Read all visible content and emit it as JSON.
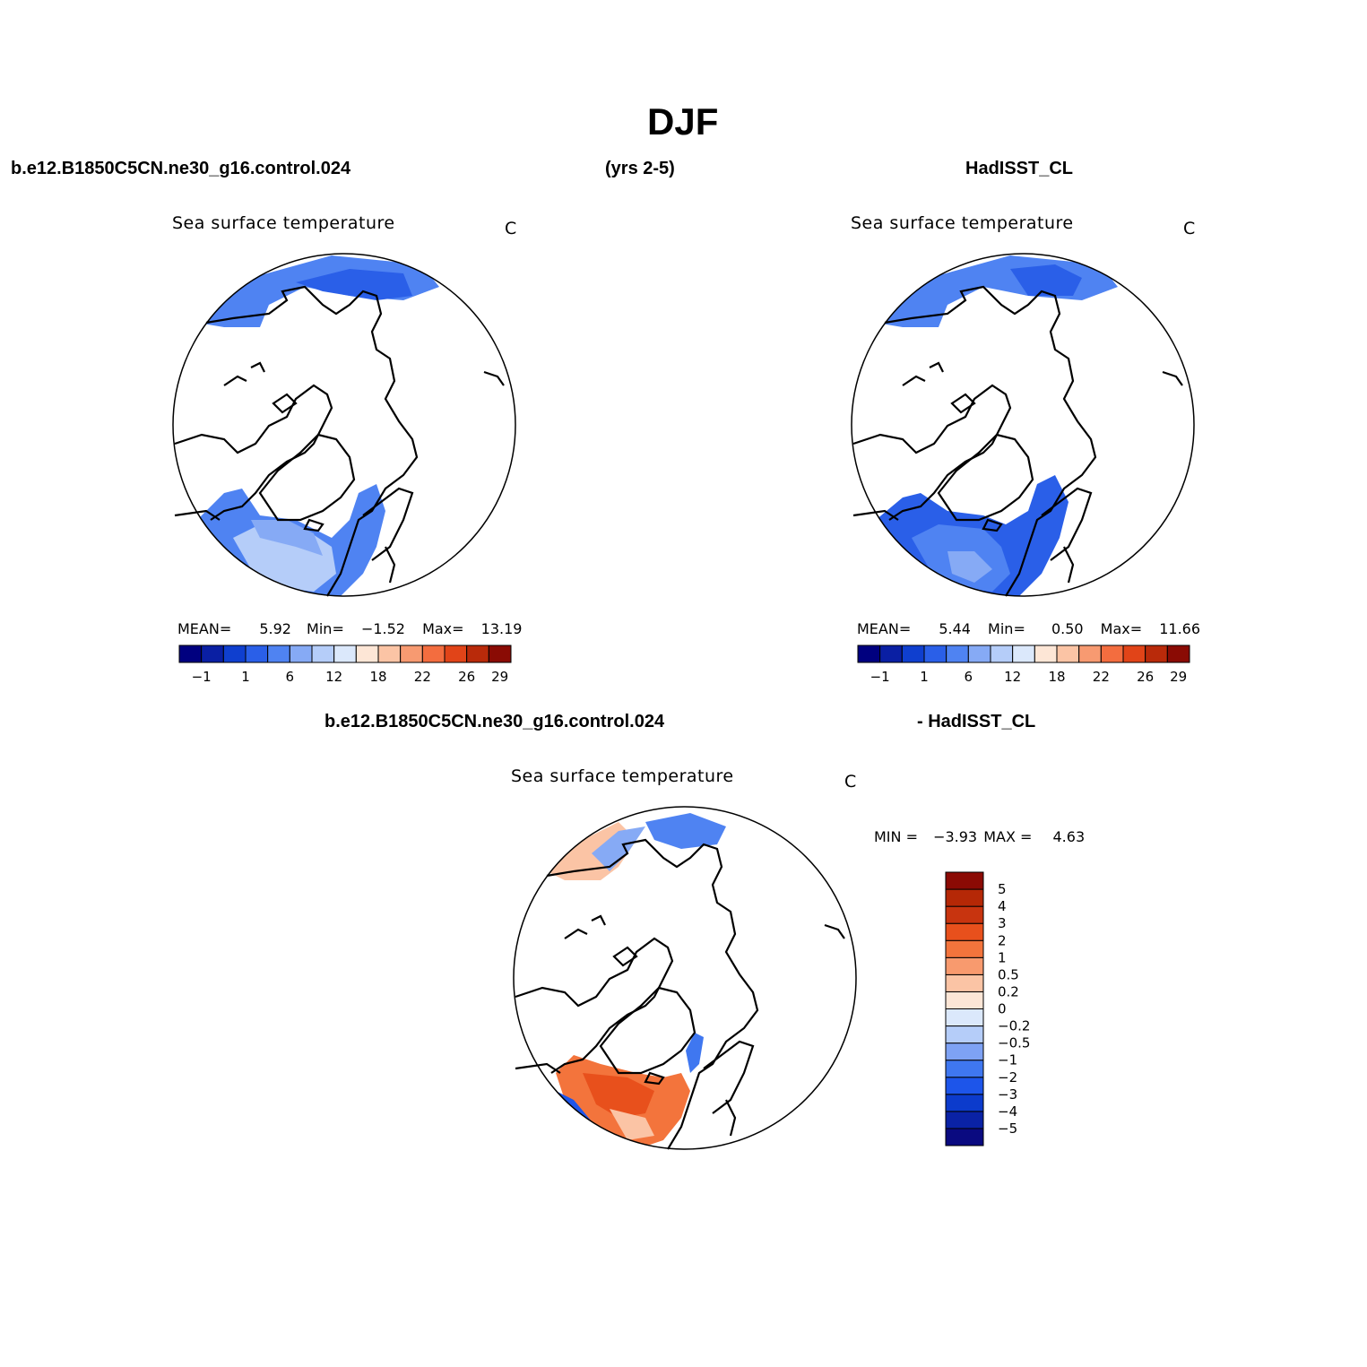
{
  "figure": {
    "title": "DJF",
    "header_left": "b.e12.B1850C5CN.ne30_g16.control.024",
    "header_center": "(yrs 2-5)",
    "header_right": "HadISST_CL",
    "diff_header_left": "b.e12.B1850C5CN.ne30_g16.control.024",
    "diff_header_right": "- HadISST_CL"
  },
  "panels": [
    {
      "id": "model",
      "title": "Sea surface temperature",
      "units": "C",
      "mean_label": "MEAN=",
      "mean": "5.92",
      "min_label": "Min=",
      "min": "−1.52",
      "max_label": "Max=",
      "max": "13.19"
    },
    {
      "id": "obs",
      "title": "Sea surface temperature",
      "units": "C",
      "mean_label": "MEAN=",
      "mean": "5.44",
      "min_label": "Min=",
      "min": "0.50",
      "max_label": "Max=",
      "max": "11.66"
    },
    {
      "id": "diff",
      "title": "Sea surface temperature",
      "units": "C",
      "min_label": "MIN =",
      "min": "−3.93",
      "max_label": "MAX =",
      "max": "4.63"
    }
  ],
  "colorbar_abs": {
    "colors": [
      "#00007f",
      "#0a1fa3",
      "#0f3fcf",
      "#2a5fe8",
      "#4f83f2",
      "#86aaf5",
      "#b5cdf9",
      "#dbe8fb",
      "#fde6d6",
      "#fbc4a5",
      "#f79a71",
      "#f36d3f",
      "#e14418",
      "#b92a0a",
      "#8a0b04"
    ],
    "tick_labels": [
      "−1",
      "1",
      "6",
      "12",
      "18",
      "22",
      "26",
      "29"
    ]
  },
  "colorbar_diff": {
    "colors": [
      "#0a0a80",
      "#0a22a5",
      "#0c3bcc",
      "#1d55ea",
      "#3f77f0",
      "#7ea2f4",
      "#b5cdf9",
      "#dbe8fb",
      "#fde6d6",
      "#fbc4a5",
      "#f89a6e",
      "#f3743c",
      "#e8501c",
      "#c8340f",
      "#b52806",
      "#8b0a04"
    ],
    "tick_labels": [
      "5",
      "4",
      "3",
      "2",
      "1",
      "0.5",
      "0.2",
      "0",
      "−0.2",
      "−0.5",
      "−1",
      "−2",
      "−3",
      "−4",
      "−5"
    ]
  }
}
